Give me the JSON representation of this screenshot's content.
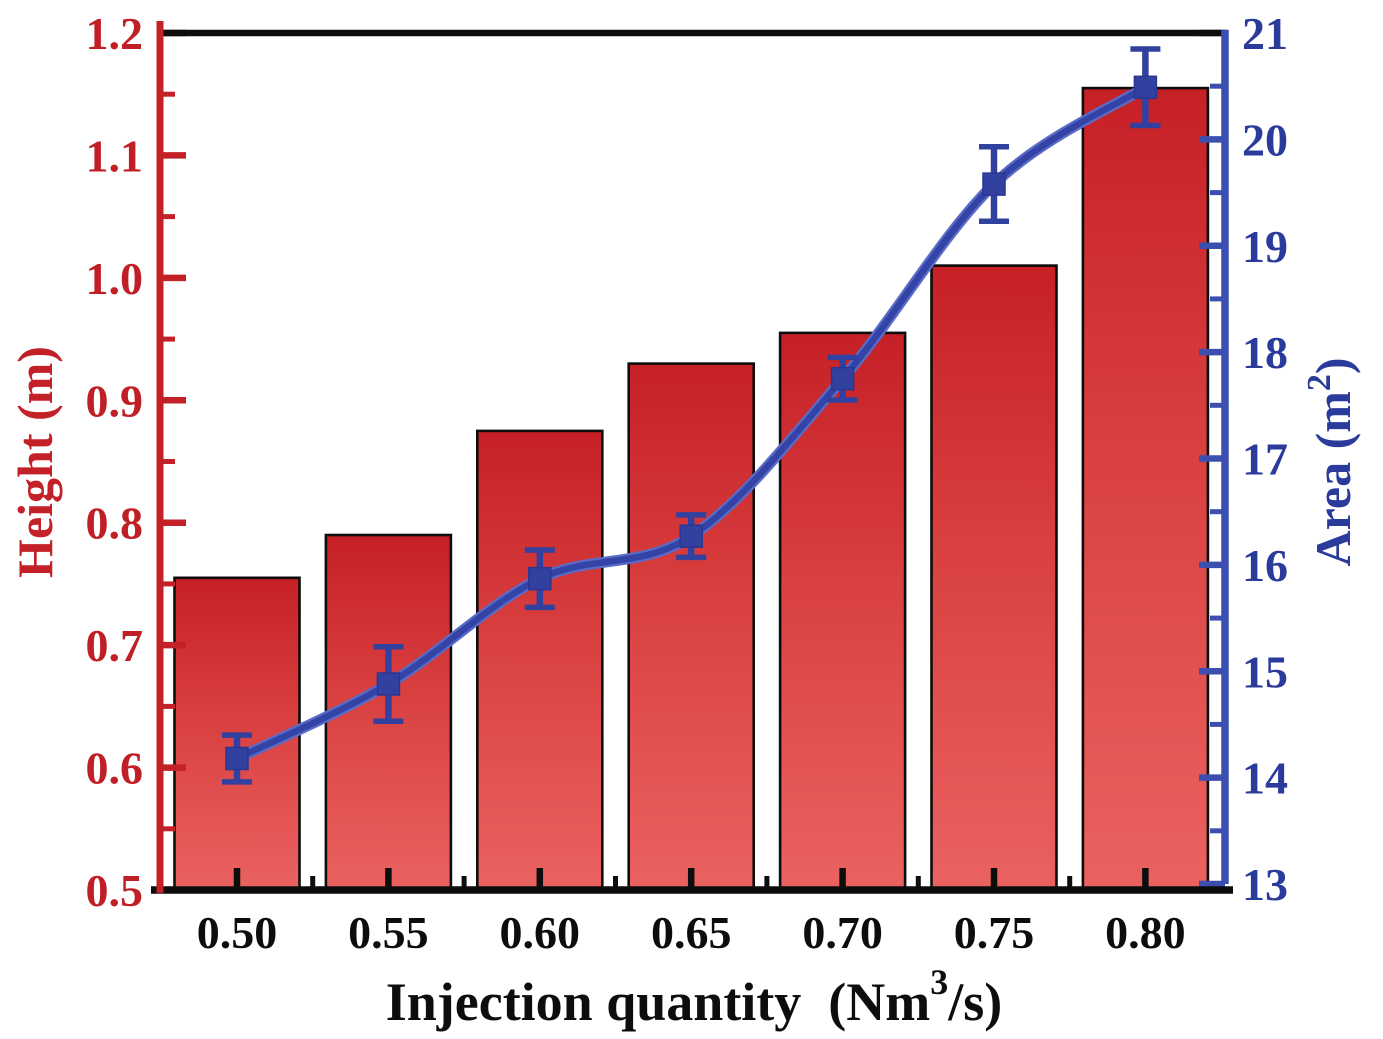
{
  "chart_data": {
    "type": "bar",
    "subtype": "dual-axis-bar-and-line-with-error-bars",
    "title": "",
    "categories": [
      "0.50",
      "0.55",
      "0.60",
      "0.65",
      "0.70",
      "0.75",
      "0.80"
    ],
    "x_values": [
      0.5,
      0.55,
      0.6,
      0.65,
      0.7,
      0.75,
      0.8
    ],
    "xlabel": {
      "pre": "Injection quantity  (Nm",
      "sup": "3",
      "post": "/s)"
    },
    "left_axis": {
      "title": "Height (m)",
      "range": [
        0.5,
        1.2
      ],
      "major_step": 0.1,
      "minor_step": 0.05,
      "tick_labels": [
        "0.5",
        "0.6",
        "0.7",
        "0.8",
        "0.9",
        "1.0",
        "1.1",
        "1.2"
      ]
    },
    "right_axis": {
      "title": {
        "pre": "Area (m",
        "sup": "2",
        "post": ")"
      },
      "range": [
        13,
        21
      ],
      "major_step": 1,
      "minor_step": 0.5,
      "tick_labels": [
        "13",
        "14",
        "15",
        "16",
        "17",
        "18",
        "19",
        "20",
        "21"
      ]
    },
    "series": [
      {
        "name": "Height",
        "type": "bar",
        "axis": "left",
        "values": [
          0.755,
          0.79,
          0.875,
          0.93,
          0.955,
          1.01,
          1.155
        ]
      },
      {
        "name": "Area",
        "type": "line",
        "axis": "right",
        "marker": "square",
        "values": [
          14.18,
          14.88,
          15.87,
          16.27,
          17.75,
          19.58,
          20.49
        ],
        "errors": [
          0.22,
          0.35,
          0.27,
          0.2,
          0.2,
          0.35,
          0.36
        ]
      }
    ],
    "legend": {
      "visible": false
    },
    "grid": false
  },
  "colors": {
    "background": "#ffffff",
    "bar_gradient_top": "#c52026",
    "bar_gradient_mid": "#d94040",
    "bar_gradient_bottom": "#ea6260",
    "bar_outline": "#0d0d0d",
    "left_axis_red": "#c32127",
    "left_label_red": "#c01f25",
    "right_axis_blue": "#3b4fb1",
    "blue_label": "#2b3b9c",
    "line_core_blue": "#3343a6",
    "line_light_blue": "#5a6bc7",
    "marker_blue": "#32409f",
    "black": "#0d0d0d"
  }
}
